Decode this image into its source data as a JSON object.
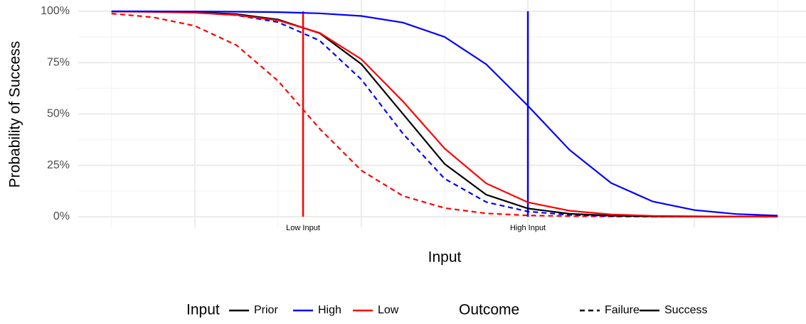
{
  "chart_data": {
    "type": "line",
    "x_label": "Input",
    "y_label": "Probability of Success",
    "xlim": [
      -0.4,
      8.34
    ],
    "ylim": [
      -5.2,
      105.5
    ],
    "xticks": [
      1,
      3,
      5,
      7
    ],
    "xminorticks": [
      0,
      2,
      4,
      6,
      8
    ],
    "yticks": [
      {
        "value": 0,
        "label": "0%"
      },
      {
        "value": 25,
        "label": "25%"
      },
      {
        "value": 50,
        "label": "50%"
      },
      {
        "value": 75,
        "label": "75%"
      },
      {
        "value": 100,
        "label": "100%"
      }
    ],
    "yminorticks": [
      12.5,
      37.5,
      62.5,
      87.5
    ],
    "grid": true,
    "x": [
      0,
      0.5,
      1,
      1.5,
      2,
      2.5,
      3,
      3.5,
      4,
      4.5,
      5,
      5.5,
      6,
      6.5,
      7,
      7.5,
      8
    ],
    "series": [
      {
        "input": "Low",
        "outcome": "Failure",
        "values": [
          98.9,
          97.1,
          92.9,
          83.5,
          66.1,
          42.8,
          22.5,
          10.1,
          4.2,
          1.6,
          0.6,
          0.25,
          0.09,
          0.04,
          0.01,
          0.01,
          0
        ]
      },
      {
        "input": "High",
        "outcome": "Failure",
        "values": [
          99.93,
          99.8,
          99.4,
          98.1,
          94.7,
          85.7,
          66.8,
          40.4,
          18.5,
          7.1,
          2.5,
          0.9,
          0.3,
          0.1,
          0.03,
          0.01,
          0
        ]
      },
      {
        "input": "Prior",
        "outcome": "Success",
        "values": [
          99.94,
          99.83,
          99.5,
          98.6,
          96.0,
          89.3,
          74.3,
          50,
          25.7,
          10.7,
          4.0,
          1.4,
          0.5,
          0.17,
          0.06,
          0.02,
          0.01
        ]
      },
      {
        "input": "Low",
        "outcome": "Success",
        "values": [
          99.9,
          99.7,
          99.3,
          98.2,
          95.6,
          89.5,
          76.7,
          56.1,
          33.2,
          16.2,
          7.0,
          2.9,
          1.1,
          0.4,
          0.2,
          0.07,
          0.03
        ]
      },
      {
        "input": "High",
        "outcome": "Success",
        "values": [
          99.99,
          99.97,
          99.93,
          99.8,
          99.6,
          99.0,
          97.7,
          94.5,
          87.5,
          74.2,
          54.0,
          32.5,
          16.4,
          7.4,
          3.2,
          1.3,
          0.5
        ]
      }
    ],
    "annotations": [
      {
        "text": "Low Input",
        "x": 2.3,
        "color": "#ff0000"
      },
      {
        "text": "High Input",
        "x": 5.0,
        "color": "#0000ff"
      }
    ],
    "legend": {
      "position": "bottom",
      "groups": [
        {
          "title": "Input",
          "items": [
            {
              "name": "Prior",
              "color": "#000000"
            },
            {
              "name": "High",
              "color": "#0000ff"
            },
            {
              "name": "Low",
              "color": "#ff0000"
            }
          ]
        },
        {
          "title": "Outcome",
          "items": [
            {
              "name": "Failure",
              "dash": "dashed"
            },
            {
              "name": "Success",
              "dash": "solid"
            }
          ]
        }
      ]
    }
  }
}
